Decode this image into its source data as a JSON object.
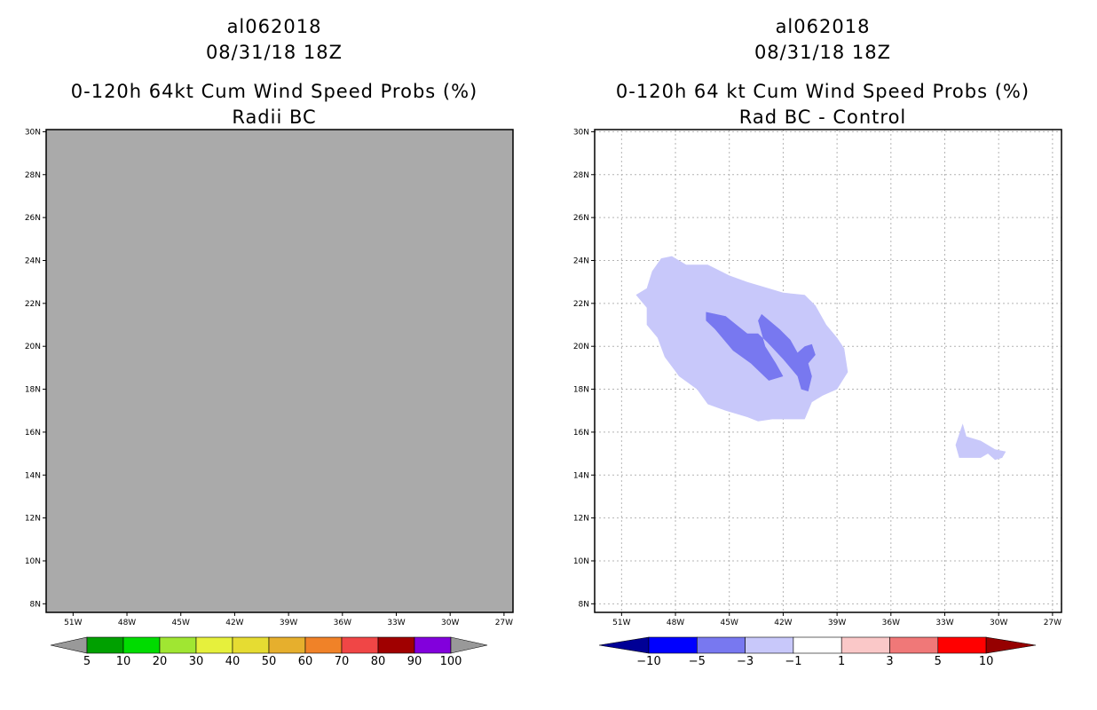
{
  "chart_data": [
    {
      "type": "heatmap",
      "title_lines": [
        "al062018",
        "08/31/18 18Z",
        "0-120h 64kt Cum Wind Speed Probs (%)",
        "Radii BC"
      ],
      "x_ticks": [
        "51W",
        "48W",
        "45W",
        "42W",
        "39W",
        "36W",
        "33W",
        "30W",
        "27W"
      ],
      "y_ticks": [
        "30N",
        "28N",
        "26N",
        "24N",
        "22N",
        "20N",
        "18N",
        "16N",
        "14N",
        "12N",
        "10N",
        "8N"
      ],
      "xlim": [
        -52.5,
        -26.5
      ],
      "ylim": [
        7.6,
        30.1
      ],
      "grid": false,
      "field_description": "uniform gray (no data)",
      "colorbar": {
        "labels": [
          "5",
          "10",
          "20",
          "30",
          "40",
          "50",
          "60",
          "70",
          "80",
          "90",
          "100"
        ],
        "colors": [
          "#999999",
          "#00a000",
          "#00dc00",
          "#a0e632",
          "#e6f03c",
          "#e6dc32",
          "#e6af2d",
          "#f08228",
          "#f04646",
          "#a00000",
          "#8200dc",
          "#999999"
        ]
      }
    },
    {
      "type": "heatmap",
      "title_lines": [
        "al062018",
        "08/31/18 18Z",
        "0-120h 64 kt Cum Wind Speed Probs (%)",
        "Rad BC - Control"
      ],
      "x_ticks": [
        "51W",
        "48W",
        "45W",
        "42W",
        "39W",
        "36W",
        "33W",
        "30W",
        "27W"
      ],
      "y_ticks": [
        "30N",
        "28N",
        "26N",
        "24N",
        "22N",
        "20N",
        "18N",
        "16N",
        "14N",
        "12N",
        "10N",
        "8N"
      ],
      "xlim": [
        -52.5,
        -26.5
      ],
      "ylim": [
        7.6,
        30.1
      ],
      "grid": true,
      "contours": [
        {
          "level": "-3 to -1",
          "color": "#c8c8fa",
          "polygons": [
            [
              [
                -48.8,
                24.1
              ],
              [
                -48.2,
                24.2
              ],
              [
                -47.4,
                23.8
              ],
              [
                -46.2,
                23.8
              ],
              [
                -45.0,
                23.3
              ],
              [
                -44.0,
                23.0
              ],
              [
                -43.2,
                22.8
              ],
              [
                -42.0,
                22.5
              ],
              [
                -40.8,
                22.4
              ],
              [
                -40.2,
                21.9
              ],
              [
                -39.6,
                21.0
              ],
              [
                -39.0,
                20.4
              ],
              [
                -38.6,
                19.9
              ],
              [
                -38.4,
                18.8
              ],
              [
                -39.0,
                18.0
              ],
              [
                -39.8,
                17.7
              ],
              [
                -40.4,
                17.4
              ],
              [
                -40.8,
                16.6
              ],
              [
                -42.6,
                16.6
              ],
              [
                -43.4,
                16.5
              ],
              [
                -44.0,
                16.7
              ],
              [
                -45.2,
                17.0
              ],
              [
                -46.2,
                17.3
              ],
              [
                -46.8,
                18.0
              ],
              [
                -47.8,
                18.6
              ],
              [
                -48.6,
                19.5
              ],
              [
                -49.0,
                20.4
              ],
              [
                -49.6,
                21.0
              ],
              [
                -49.6,
                21.8
              ],
              [
                -50.2,
                22.4
              ],
              [
                -49.6,
                22.7
              ],
              [
                -49.3,
                23.5
              ],
              [
                -48.8,
                24.1
              ]
            ],
            [
              [
                -32.0,
                16.4
              ],
              [
                -31.8,
                15.8
              ],
              [
                -31.0,
                15.6
              ],
              [
                -30.2,
                15.2
              ],
              [
                -29.6,
                15.1
              ],
              [
                -29.8,
                14.8
              ],
              [
                -30.2,
                14.7
              ],
              [
                -30.6,
                15.0
              ],
              [
                -31.0,
                14.8
              ],
              [
                -32.2,
                14.8
              ],
              [
                -32.4,
                15.4
              ],
              [
                -32.0,
                16.4
              ]
            ]
          ]
        },
        {
          "level": "-5 to -3",
          "color": "#7878f0",
          "polygons": [
            [
              [
                -46.3,
                21.6
              ],
              [
                -45.2,
                21.4
              ],
              [
                -44.6,
                21.0
              ],
              [
                -44.0,
                20.6
              ],
              [
                -43.4,
                20.6
              ],
              [
                -42.9,
                20.2
              ],
              [
                -42.0,
                19.4
              ],
              [
                -41.6,
                19.0
              ],
              [
                -41.2,
                18.6
              ],
              [
                -41.0,
                18.0
              ],
              [
                -40.6,
                17.9
              ],
              [
                -40.4,
                18.6
              ],
              [
                -40.6,
                19.2
              ],
              [
                -40.2,
                19.6
              ],
              [
                -40.4,
                20.1
              ],
              [
                -40.8,
                20.0
              ],
              [
                -41.2,
                19.7
              ],
              [
                -41.6,
                20.3
              ],
              [
                -42.2,
                20.8
              ],
              [
                -43.2,
                21.5
              ],
              [
                -43.4,
                21.2
              ],
              [
                -43.0,
                20.0
              ],
              [
                -42.4,
                19.2
              ],
              [
                -42.0,
                18.6
              ],
              [
                -42.8,
                18.4
              ],
              [
                -43.8,
                19.2
              ],
              [
                -44.8,
                19.8
              ],
              [
                -45.8,
                20.8
              ],
              [
                -46.3,
                21.2
              ],
              [
                -46.3,
                21.6
              ]
            ]
          ]
        }
      ],
      "colorbar": {
        "labels": [
          "-10",
          "-5",
          "-3",
          "-1",
          "1",
          "3",
          "5",
          "10"
        ],
        "colors": [
          "#000096",
          "#0000ff",
          "#7878f0",
          "#c8c8fa",
          "#ffffff",
          "#fac8c8",
          "#f07878",
          "#ff0000",
          "#960000"
        ]
      }
    }
  ]
}
